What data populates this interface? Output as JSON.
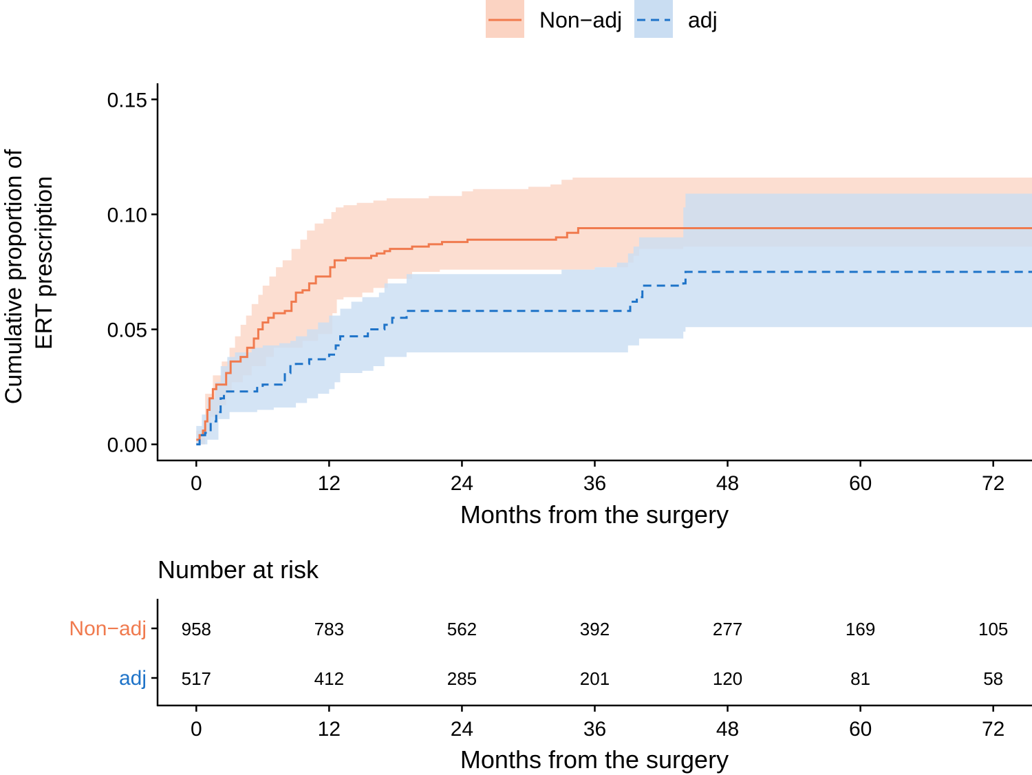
{
  "chart_data": {
    "type": "line",
    "subtype": "cumulative-incidence-step",
    "legend_position": "top",
    "ylabel_line1": "Cumulative proportion of",
    "ylabel_line2": "ERT prescription",
    "xlabel": "Months from the surgery",
    "xlim": [
      -3.5,
      75.5
    ],
    "ylim": [
      -0.007,
      0.157
    ],
    "xticks": [
      0,
      12,
      24,
      36,
      48,
      60,
      72
    ],
    "xtick_labels": [
      "0",
      "12",
      "24",
      "36",
      "48",
      "60",
      "72"
    ],
    "yticks": [
      0.0,
      0.05,
      0.1,
      0.15
    ],
    "ytick_labels": [
      "0.00",
      "0.05",
      "0.10",
      "0.15"
    ],
    "series": [
      {
        "name": "Non−adj",
        "color": "#F07A4E",
        "ci_color": "#FBD3C2",
        "dash": "solid",
        "points": [
          [
            0,
            0.002
          ],
          [
            0.3,
            0.004
          ],
          [
            0.6,
            0.006
          ],
          [
            0.8,
            0.01
          ],
          [
            1.0,
            0.015
          ],
          [
            1.2,
            0.02
          ],
          [
            1.5,
            0.024
          ],
          [
            1.8,
            0.026
          ],
          [
            2.7,
            0.031
          ],
          [
            3.1,
            0.036
          ],
          [
            4.0,
            0.038
          ],
          [
            4.6,
            0.042
          ],
          [
            5.2,
            0.046
          ],
          [
            5.6,
            0.05
          ],
          [
            6.0,
            0.053
          ],
          [
            6.5,
            0.055
          ],
          [
            7.0,
            0.057
          ],
          [
            8.0,
            0.058
          ],
          [
            8.6,
            0.062
          ],
          [
            9.0,
            0.066
          ],
          [
            9.6,
            0.067
          ],
          [
            10.2,
            0.07
          ],
          [
            10.8,
            0.073
          ],
          [
            12.1,
            0.077
          ],
          [
            12.5,
            0.08
          ],
          [
            13.5,
            0.081
          ],
          [
            15.0,
            0.081
          ],
          [
            15.8,
            0.082
          ],
          [
            16.3,
            0.083
          ],
          [
            17.0,
            0.084
          ],
          [
            17.5,
            0.085
          ],
          [
            19.5,
            0.086
          ],
          [
            21.0,
            0.087
          ],
          [
            22.2,
            0.088
          ],
          [
            24.5,
            0.089
          ],
          [
            28.0,
            0.089
          ],
          [
            32.5,
            0.09
          ],
          [
            33.5,
            0.092
          ],
          [
            34.5,
            0.094
          ],
          [
            50.0,
            0.094
          ],
          [
            75.5,
            0.094
          ]
        ],
        "ci_upper": [
          [
            0,
            0.006
          ],
          [
            0.8,
            0.022
          ],
          [
            1.5,
            0.03
          ],
          [
            2.3,
            0.036
          ],
          [
            3.0,
            0.042
          ],
          [
            3.5,
            0.047
          ],
          [
            4.0,
            0.052
          ],
          [
            4.5,
            0.056
          ],
          [
            5.0,
            0.061
          ],
          [
            5.6,
            0.065
          ],
          [
            6.0,
            0.069
          ],
          [
            6.6,
            0.073
          ],
          [
            7.2,
            0.077
          ],
          [
            7.8,
            0.08
          ],
          [
            8.6,
            0.085
          ],
          [
            9.4,
            0.089
          ],
          [
            10.0,
            0.093
          ],
          [
            10.7,
            0.096
          ],
          [
            11.5,
            0.098
          ],
          [
            12.2,
            0.101
          ],
          [
            12.6,
            0.103
          ],
          [
            13.3,
            0.104
          ],
          [
            14.5,
            0.105
          ],
          [
            16.0,
            0.106
          ],
          [
            17.2,
            0.107
          ],
          [
            19.5,
            0.107
          ],
          [
            21.0,
            0.108
          ],
          [
            24.0,
            0.11
          ],
          [
            25.0,
            0.111
          ],
          [
            30.0,
            0.112
          ],
          [
            32.0,
            0.113
          ],
          [
            33.0,
            0.115
          ],
          [
            34.0,
            0.116
          ],
          [
            75.5,
            0.116
          ]
        ],
        "ci_lower": [
          [
            0,
            0.0
          ],
          [
            0.8,
            0.006
          ],
          [
            1.3,
            0.012
          ],
          [
            2.0,
            0.017
          ],
          [
            2.7,
            0.022
          ],
          [
            3.2,
            0.027
          ],
          [
            4.2,
            0.03
          ],
          [
            5.0,
            0.034
          ],
          [
            6.3,
            0.038
          ],
          [
            7.0,
            0.042
          ],
          [
            9.6,
            0.045
          ],
          [
            11.0,
            0.048
          ],
          [
            12.3,
            0.057
          ],
          [
            12.7,
            0.063
          ],
          [
            13.3,
            0.064
          ],
          [
            15.0,
            0.066
          ],
          [
            16.0,
            0.068
          ],
          [
            17.3,
            0.072
          ],
          [
            19.5,
            0.075
          ],
          [
            22.0,
            0.076
          ],
          [
            24.0,
            0.076
          ],
          [
            33.0,
            0.076
          ],
          [
            36.0,
            0.077
          ],
          [
            39.0,
            0.079
          ],
          [
            39.5,
            0.082
          ],
          [
            40.0,
            0.085
          ],
          [
            44.0,
            0.086
          ],
          [
            46.0,
            0.086
          ],
          [
            48.0,
            0.086
          ],
          [
            60.0,
            0.086
          ],
          [
            75.5,
            0.086
          ]
        ]
      },
      {
        "name": "adj",
        "color": "#1E73C8",
        "ci_color": "#C9DDF2",
        "dash": "dashed",
        "points": [
          [
            0,
            0.0
          ],
          [
            0.3,
            0.004
          ],
          [
            0.8,
            0.005
          ],
          [
            1.3,
            0.01
          ],
          [
            1.8,
            0.014
          ],
          [
            2.2,
            0.02
          ],
          [
            2.5,
            0.023
          ],
          [
            5.5,
            0.025
          ],
          [
            6.0,
            0.026
          ],
          [
            7.7,
            0.027
          ],
          [
            8.0,
            0.031
          ],
          [
            8.5,
            0.034
          ],
          [
            9.0,
            0.035
          ],
          [
            10.2,
            0.037
          ],
          [
            12.0,
            0.039
          ],
          [
            12.6,
            0.043
          ],
          [
            13.0,
            0.047
          ],
          [
            15.5,
            0.05
          ],
          [
            17.0,
            0.052
          ],
          [
            17.7,
            0.055
          ],
          [
            19.0,
            0.058
          ],
          [
            28.0,
            0.058
          ],
          [
            39.0,
            0.058
          ],
          [
            39.2,
            0.062
          ],
          [
            39.8,
            0.064
          ],
          [
            40.3,
            0.069
          ],
          [
            44.0,
            0.07
          ],
          [
            44.2,
            0.075
          ],
          [
            60.0,
            0.075
          ],
          [
            75.5,
            0.075
          ]
        ],
        "ci_upper": [
          [
            0,
            0.008
          ],
          [
            0.5,
            0.013
          ],
          [
            1.0,
            0.02
          ],
          [
            1.7,
            0.027
          ],
          [
            2.2,
            0.034
          ],
          [
            2.8,
            0.038
          ],
          [
            3.5,
            0.04
          ],
          [
            5.0,
            0.042
          ],
          [
            6.0,
            0.043
          ],
          [
            7.5,
            0.044
          ],
          [
            8.5,
            0.045
          ],
          [
            9.0,
            0.047
          ],
          [
            10.0,
            0.05
          ],
          [
            11.0,
            0.053
          ],
          [
            12.0,
            0.056
          ],
          [
            13.0,
            0.059
          ],
          [
            14.0,
            0.062
          ],
          [
            15.0,
            0.064
          ],
          [
            16.5,
            0.066
          ],
          [
            17.0,
            0.07
          ],
          [
            19.0,
            0.074
          ],
          [
            26.0,
            0.074
          ],
          [
            33.0,
            0.076
          ],
          [
            36.0,
            0.077
          ],
          [
            38.0,
            0.079
          ],
          [
            39.0,
            0.083
          ],
          [
            39.5,
            0.086
          ],
          [
            40.0,
            0.09
          ],
          [
            44.0,
            0.103
          ],
          [
            44.2,
            0.109
          ],
          [
            60.0,
            0.109
          ],
          [
            75.5,
            0.109
          ]
        ],
        "ci_lower": [
          [
            0,
            0.0
          ],
          [
            1.0,
            0.002
          ],
          [
            2.0,
            0.011
          ],
          [
            3.0,
            0.014
          ],
          [
            4.0,
            0.014
          ],
          [
            5.5,
            0.015
          ],
          [
            7.0,
            0.016
          ],
          [
            9.0,
            0.018
          ],
          [
            10.0,
            0.02
          ],
          [
            11.0,
            0.022
          ],
          [
            12.0,
            0.024
          ],
          [
            12.5,
            0.027
          ],
          [
            13.0,
            0.031
          ],
          [
            15.0,
            0.032
          ],
          [
            16.0,
            0.034
          ],
          [
            17.0,
            0.038
          ],
          [
            19.0,
            0.04
          ],
          [
            26.0,
            0.04
          ],
          [
            33.0,
            0.04
          ],
          [
            35.0,
            0.04
          ],
          [
            36.0,
            0.04
          ],
          [
            38.0,
            0.04
          ],
          [
            39.0,
            0.043
          ],
          [
            40.0,
            0.046
          ],
          [
            44.0,
            0.049
          ],
          [
            44.2,
            0.051
          ],
          [
            60.0,
            0.051
          ],
          [
            75.5,
            0.051
          ]
        ]
      }
    ],
    "risk_table": {
      "title": "Number at risk",
      "xlabel": "Months from the surgery",
      "times": [
        "0",
        "12",
        "24",
        "36",
        "48",
        "60",
        "72"
      ],
      "rows": [
        {
          "name": "Non−adj",
          "color": "#F07A4E",
          "values": [
            "958",
            "783",
            "562",
            "392",
            "277",
            "169",
            "105"
          ]
        },
        {
          "name": "adj",
          "color": "#1E73C8",
          "values": [
            "517",
            "412",
            "285",
            "201",
            "120",
            "81",
            "58"
          ]
        }
      ]
    }
  }
}
